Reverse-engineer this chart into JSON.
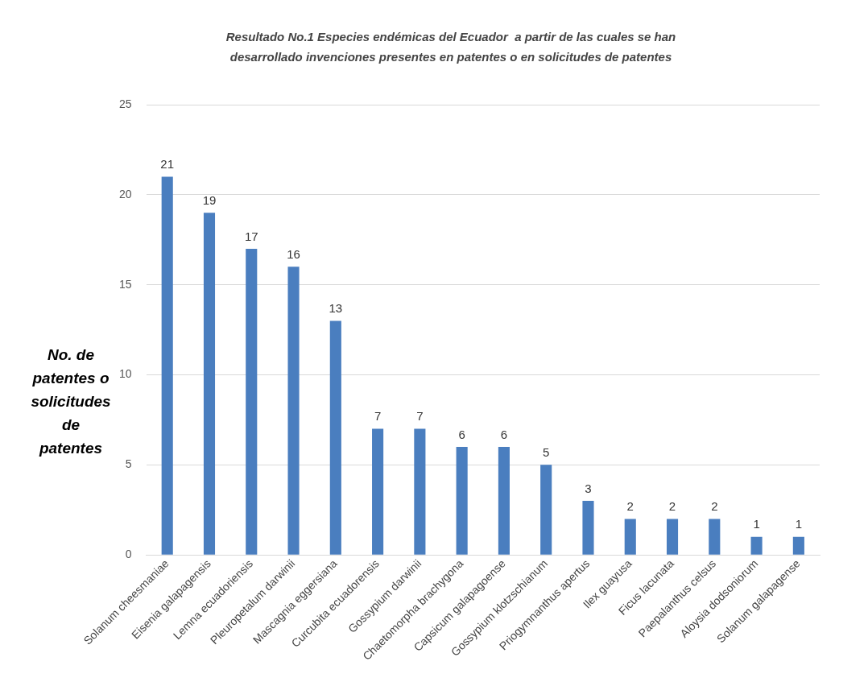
{
  "chart_data": {
    "type": "bar",
    "title": "Resultado No.1 Especies endémicas del Ecuador  a partir de las cuales se han desarrollado invenciones presentes en patentes o en solicitudes de patentes",
    "ylabel": "No. de patentes o solicitudes de patentes",
    "categories": [
      "Solanum cheesmaniae",
      "Eisenia galapagensis",
      "Lemna ecuadoriensis",
      "Pleuropetalum darwinii",
      "Mascagnia eggersiana",
      "Curcubita ecuadorensis",
      "Gossypium darwinii",
      "Chaetomorpha brachygona",
      "Capsicum galapagoense",
      "Gossypium klotzschianum",
      "Priogymnanthus apertus",
      "Ilex guayusa",
      "Ficus lacunata",
      "Paepalanthus celsus",
      "Aloysia dodsoniorum",
      "Solanum galapagense"
    ],
    "values": [
      21,
      19,
      17,
      16,
      13,
      7,
      7,
      6,
      6,
      5,
      3,
      2,
      2,
      2,
      1,
      1
    ],
    "color": "#4a7ebf",
    "ylim": [
      0,
      25
    ],
    "yticks": [
      0,
      5,
      10,
      15,
      20,
      25
    ],
    "grid": "y",
    "legend": false,
    "data_labels": true
  }
}
